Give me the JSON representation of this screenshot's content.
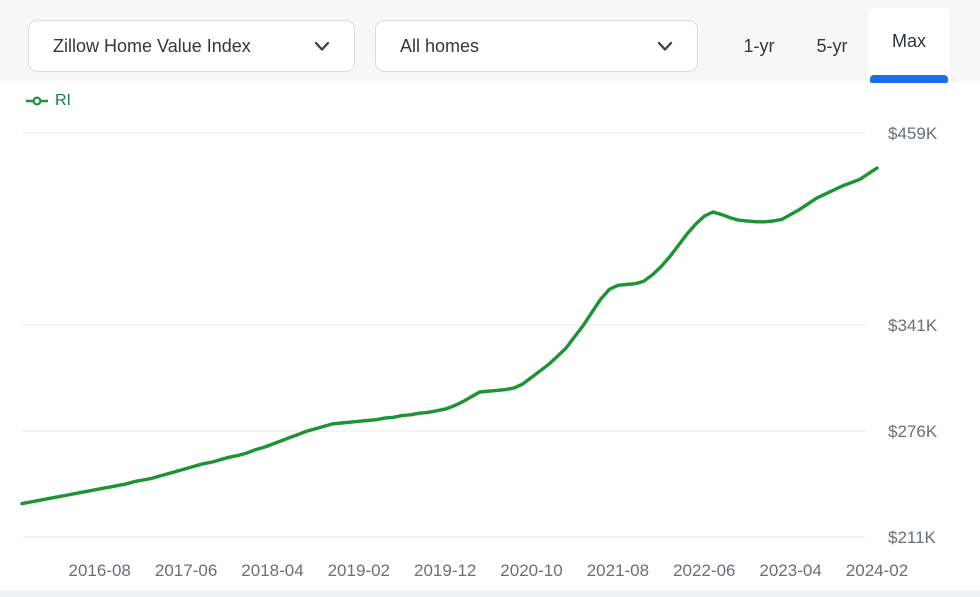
{
  "header": {
    "metric_select": {
      "value": "Zillow Home Value Index"
    },
    "home_type_select": {
      "value": "All homes"
    },
    "range_tabs": [
      {
        "id": "1yr",
        "label": "1-yr",
        "active": false
      },
      {
        "id": "5yr",
        "label": "5-yr",
        "active": false
      },
      {
        "id": "max",
        "label": "Max",
        "active": true
      }
    ]
  },
  "legend": {
    "items": [
      {
        "label": "RI",
        "color": "#17803a"
      }
    ]
  },
  "colors": {
    "header_background": "#f7f7f8",
    "control_border": "#d9dce1",
    "active_tab_underline": "#1a6fe8",
    "series_green": "#1e9335",
    "gridline": "#ebedee",
    "axis_label": "#6a6f76"
  },
  "chart_data": {
    "type": "line",
    "title": "",
    "xlabel": "",
    "ylabel": "",
    "legend_position": "top-left",
    "grid": "horizontal-only",
    "y_axis": {
      "unit": "USD thousands",
      "approx_range_k": [
        205,
        475
      ],
      "ticks": [
        {
          "label": "$459K",
          "value": 459
        },
        {
          "label": "$341K",
          "value": 341
        },
        {
          "label": "$276K",
          "value": 276
        },
        {
          "label": "$211K",
          "value": 211
        }
      ]
    },
    "x_axis": {
      "ticks": [
        {
          "label": "2016-08",
          "month_index": 9
        },
        {
          "label": "2017-06",
          "month_index": 19
        },
        {
          "label": "2018-04",
          "month_index": 29
        },
        {
          "label": "2019-02",
          "month_index": 39
        },
        {
          "label": "2019-12",
          "month_index": 49
        },
        {
          "label": "2020-10",
          "month_index": 59
        },
        {
          "label": "2021-08",
          "month_index": 69
        },
        {
          "label": "2022-06",
          "month_index": 79
        },
        {
          "label": "2023-04",
          "month_index": 89
        },
        {
          "label": "2024-02",
          "month_index": 99
        }
      ]
    },
    "series": [
      {
        "name": "RI",
        "color": "#1e9335",
        "start_month": "2015-11",
        "frequency": "monthly",
        "values_k_usd": [
          231.5,
          232.5,
          233.5,
          234.5,
          235.5,
          236.5,
          237.5,
          238.5,
          239.5,
          240.5,
          241.5,
          242.5,
          243.5,
          245,
          246,
          247,
          248.5,
          250,
          251.5,
          253,
          254.5,
          256,
          257,
          258.5,
          260,
          261,
          262.5,
          264.5,
          266,
          268,
          270,
          272,
          274,
          276,
          277.5,
          279,
          280.5,
          281,
          281.5,
          282,
          282.5,
          283,
          284,
          284.5,
          285.5,
          286,
          287,
          287.5,
          288.5,
          289.5,
          291.5,
          294,
          297,
          300,
          300.5,
          301,
          301.5,
          302.5,
          305,
          309,
          313,
          317,
          322,
          327,
          334,
          341,
          349,
          357,
          363,
          365.5,
          366,
          366.5,
          368,
          372,
          377,
          383,
          390,
          397,
          403,
          408,
          410.5,
          409,
          407,
          405.5,
          405,
          404.5,
          404.5,
          405,
          406,
          409,
          412,
          415.5,
          419,
          421.5,
          424,
          426.5,
          428.5,
          430.5,
          434,
          437.5
        ]
      }
    ]
  }
}
